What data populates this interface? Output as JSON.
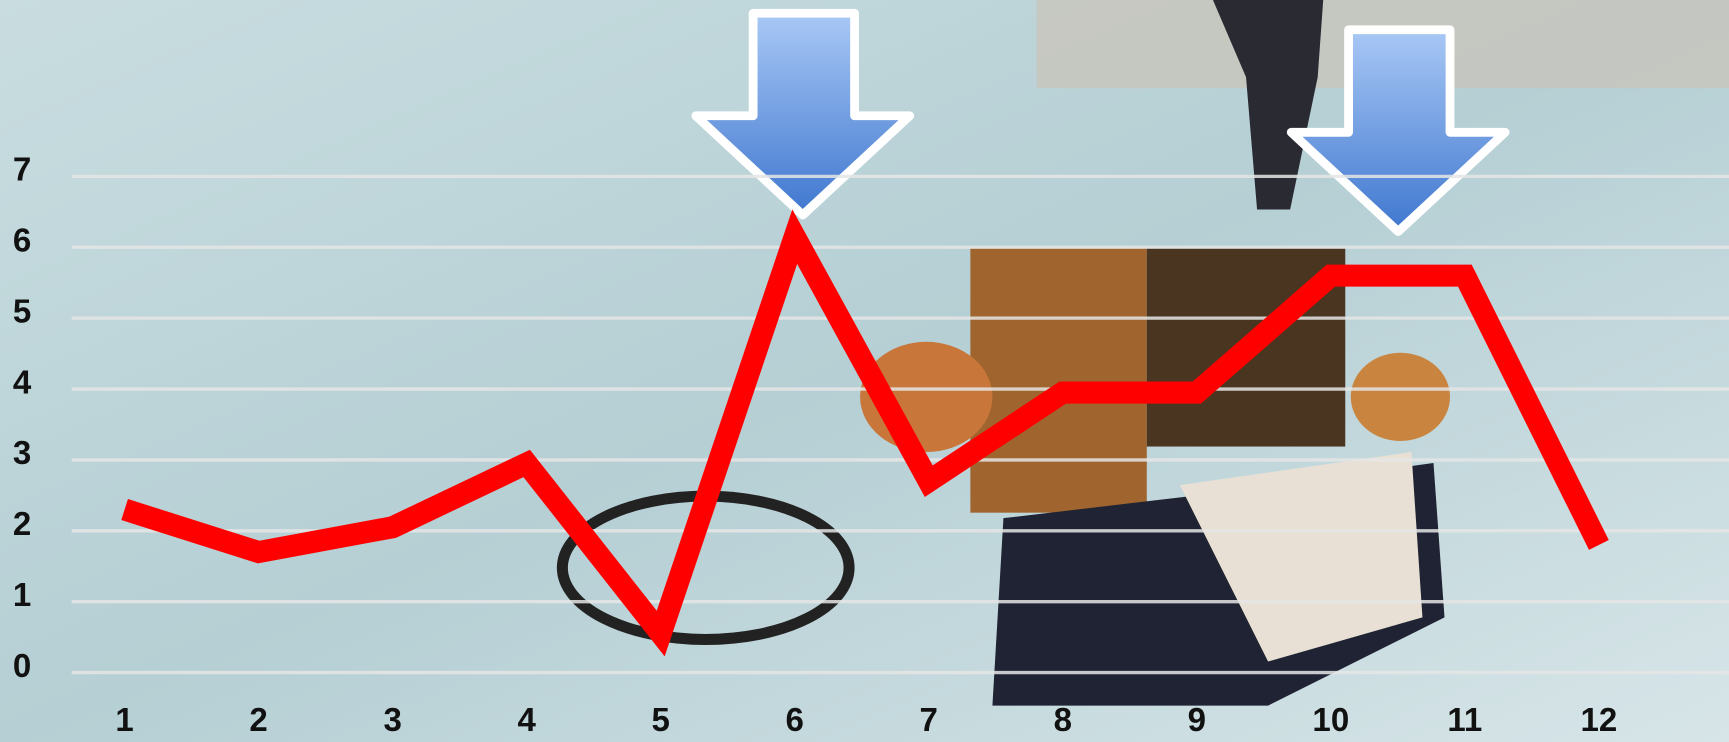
{
  "chart_data": {
    "type": "line",
    "categories": [
      "1",
      "2",
      "3",
      "4",
      "5",
      "6",
      "7",
      "8",
      "9",
      "10",
      "11",
      "12"
    ],
    "series": [
      {
        "color": "#ff0000",
        "values": [
          2.3,
          1.7,
          2.05,
          2.95,
          0.55,
          6.15,
          2.7,
          3.95,
          3.95,
          5.6,
          5.6,
          1.8
        ]
      }
    ],
    "ylim": [
      0,
      7
    ],
    "yticks": [
      0,
      1,
      2,
      3,
      4,
      5,
      6,
      7
    ],
    "grid": true
  }
}
